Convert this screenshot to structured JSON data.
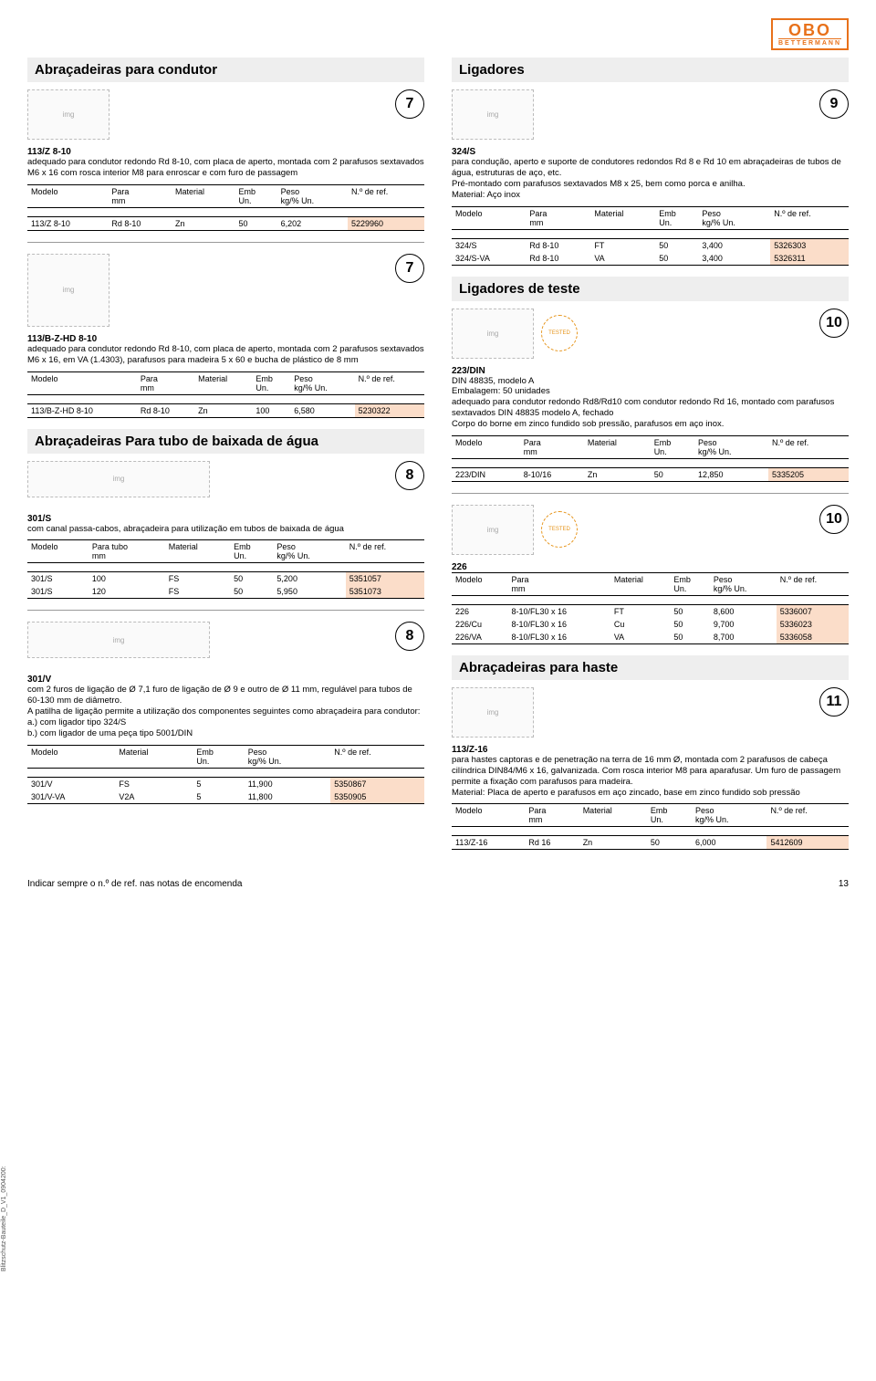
{
  "brand": {
    "name": "OBO",
    "sub": "BETTERMANN"
  },
  "page_number": "13",
  "footer_note": "Indicar sempre o n.º de ref. nas notas de encomenda",
  "sidetext": "Blitzschutz-Bauteile_D_V1_0904200:",
  "headers": {
    "modelo": "Modelo",
    "para_mm": "Para\nmm",
    "para_tubo": "Para tubo\nmm",
    "material": "Material",
    "emb": "Emb\nUn.",
    "peso": "Peso\nkg/% Un.",
    "ref": "N.º de ref."
  },
  "left": {
    "sec1_title": "Abraçadeiras para condutor",
    "p1": {
      "badge": "7",
      "code": "113/Z 8-10",
      "desc": "adequado para condutor redondo Rd 8-10, com placa de aperto, montada com 2 parafusos sextavados M6 x 16 com rosca interior M8 para enroscar e com furo de passagem",
      "rows": [
        {
          "m": "113/Z 8-10",
          "p": "Rd 8-10",
          "mat": "Zn",
          "e": "50",
          "w": "6,202",
          "r": "5229960"
        }
      ]
    },
    "p2": {
      "badge": "7",
      "code": "113/B-Z-HD 8-10",
      "desc": "adequado para condutor redondo Rd 8-10, com placa de aperto, montada com 2 parafusos sextavados M6 x 16, em VA (1.4303), parafusos para madeira 5 x 60 e bucha de plástico de 8 mm",
      "rows": [
        {
          "m": "113/B-Z-HD 8-10",
          "p": "Rd 8-10",
          "mat": "Zn",
          "e": "100",
          "w": "6,580",
          "r": "5230322"
        }
      ]
    },
    "sec2_title": "Abraçadeiras Para tubo de baixada de água",
    "p3": {
      "badge": "8",
      "code": "301/S",
      "desc": "com canal passa-cabos, abraçadeira para utilização em tubos de baixada de água",
      "rows": [
        {
          "m": "301/S",
          "p": "100",
          "mat": "FS",
          "e": "50",
          "w": "5,200",
          "r": "5351057"
        },
        {
          "m": "301/S",
          "p": "120",
          "mat": "FS",
          "e": "50",
          "w": "5,950",
          "r": "5351073"
        }
      ]
    },
    "p4": {
      "badge": "8",
      "code": "301/V",
      "desc": "com 2 furos de ligação de Ø 7,1 furo de ligação de Ø 9 e outro de Ø 11 mm, regulável para tubos de 60-130 mm de diâmetro.\nA patilha de ligação permite a utilização dos componentes seguintes como abraçadeira para condutor:\na.) com ligador tipo 324/S\nb.) com ligador de uma peça tipo 5001/DIN",
      "rows": [
        {
          "m": "301/V",
          "mat": "FS",
          "e": "5",
          "w": "11,900",
          "r": "5350867"
        },
        {
          "m": "301/V-VA",
          "mat": "V2A",
          "e": "5",
          "w": "11,800",
          "r": "5350905"
        }
      ]
    }
  },
  "right": {
    "sec1_title": "Ligadores",
    "p1": {
      "badge": "9",
      "code": "324/S",
      "desc": "para condução, aperto e suporte de condutores redondos Rd 8 e Rd 10 em abraçadeiras de tubos de água, estruturas de aço, etc.\nPré-montado com parafusos sextavados M8 x 25, bem como porca e anilha.\nMaterial: Aço inox",
      "rows": [
        {
          "m": "324/S",
          "p": "Rd 8-10",
          "mat": "FT",
          "e": "50",
          "w": "3,400",
          "r": "5326303"
        },
        {
          "m": "324/S-VA",
          "p": "Rd 8-10",
          "mat": "VA",
          "e": "50",
          "w": "3,400",
          "r": "5326311"
        }
      ]
    },
    "sec2_title": "Ligadores de teste",
    "p2": {
      "badge": "10",
      "code": "223/DIN",
      "desc": "DIN 48835, modelo A\nEmbalagem: 50 unidades\nadequado para condutor redondo Rd8/Rd10 com condutor redondo Rd 16, montado com parafusos sextavados DIN 48835 modelo A, fechado\nCorpo do borne em zinco fundido sob pressão, parafusos em aço inox.",
      "rows": [
        {
          "m": "223/DIN",
          "p": "8-10/16",
          "mat": "Zn",
          "e": "50",
          "w": "12,850",
          "r": "5335205"
        }
      ]
    },
    "p3": {
      "badge": "10",
      "code": "226",
      "desc": "",
      "rows": [
        {
          "m": "226",
          "p": "8-10/FL30 x 16",
          "mat": "FT",
          "e": "50",
          "w": "8,600",
          "r": "5336007"
        },
        {
          "m": "226/Cu",
          "p": "8-10/FL30 x 16",
          "mat": "Cu",
          "e": "50",
          "w": "9,700",
          "r": "5336023"
        },
        {
          "m": "226/VA",
          "p": "8-10/FL30 x 16",
          "mat": "VA",
          "e": "50",
          "w": "8,700",
          "r": "5336058"
        }
      ]
    },
    "sec3_title": "Abraçadeiras para haste",
    "p4": {
      "badge": "11",
      "code": "113/Z-16",
      "desc": "para hastes captoras e de penetração na terra de 16 mm Ø, montada com 2 parafusos de cabeça cilíndrica DIN84/M6 x 16, galvanizada. Com rosca interior M8 para aparafusar. Um furo de passagem permite a fixação com parafusos para madeira.\nMaterial: Placa de aperto e parafusos em aço zincado, base em zinco fundido sob pressão",
      "rows": [
        {
          "m": "113/Z-16",
          "p": "Rd 16",
          "mat": "Zn",
          "e": "50",
          "w": "6,000",
          "r": "5412609"
        }
      ]
    }
  }
}
